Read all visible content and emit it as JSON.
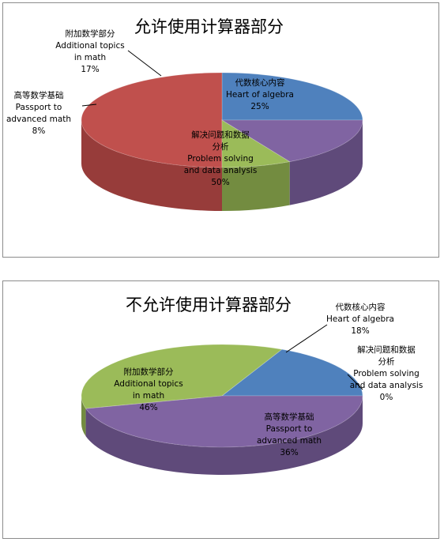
{
  "chart_data": [
    {
      "type": "pie",
      "title": "允许使用计算器部分",
      "slices": [
        {
          "label_zh": "代数核心内容",
          "label_en": "Heart of algebra",
          "value": 25,
          "value_text": "25%",
          "color": "#4f81bd",
          "side_color": "#3a6496"
        },
        {
          "label_zh": "解决问题和数据分析",
          "label_zh_lines": [
            "解决问题和数据",
            "分析"
          ],
          "label_en": "Problem solving and data analysis",
          "label_en_lines": [
            "Problem solving",
            "and data analysis"
          ],
          "value": 50,
          "value_text": "50%",
          "color": "#c0504d",
          "side_color": "#973c3a"
        },
        {
          "label_zh": "高等数学基础",
          "label_en": "Passport to advanced math",
          "label_en_lines": [
            "Passport to",
            "advanced math"
          ],
          "value": 8,
          "value_text": "8%",
          "color": "#9bbb59",
          "side_color": "#738c40"
        },
        {
          "label_zh": "附加数学部分",
          "label_en": "Additional topics in math",
          "label_en_lines": [
            "Additional topics",
            "in math"
          ],
          "value": 17,
          "value_text": "17%",
          "color": "#8064a2",
          "side_color": "#5f4a7a"
        }
      ]
    },
    {
      "type": "pie",
      "title": "不允许使用计算器部分",
      "slices": [
        {
          "label_zh": "代数核心内容",
          "label_en": "Heart of algebra",
          "value": 18,
          "value_text": "18%",
          "color": "#4f81bd",
          "side_color": "#3a6496"
        },
        {
          "label_zh": "解决问题和数据分析",
          "label_zh_lines": [
            "解决问题和数据",
            "分析"
          ],
          "label_en": "Problem solving and data analysis",
          "label_en_lines": [
            "Problem solving",
            "and data analysis"
          ],
          "value": 0,
          "value_text": "0%",
          "color": "#c0504d",
          "side_color": "#973c3a"
        },
        {
          "label_zh": "高等数学基础",
          "label_en": "Passport to advanced math",
          "label_en_lines": [
            "Passport to",
            "advanced math"
          ],
          "value": 36,
          "value_text": "36%",
          "color": "#9bbb59",
          "side_color": "#738c40"
        },
        {
          "label_zh": "附加数学部分",
          "label_en": "Additional topics in math",
          "label_en_lines": [
            "Additional topics",
            "in math"
          ],
          "value": 46,
          "value_text": "46%",
          "color": "#8064a2",
          "side_color": "#5f4a7a"
        }
      ]
    }
  ]
}
